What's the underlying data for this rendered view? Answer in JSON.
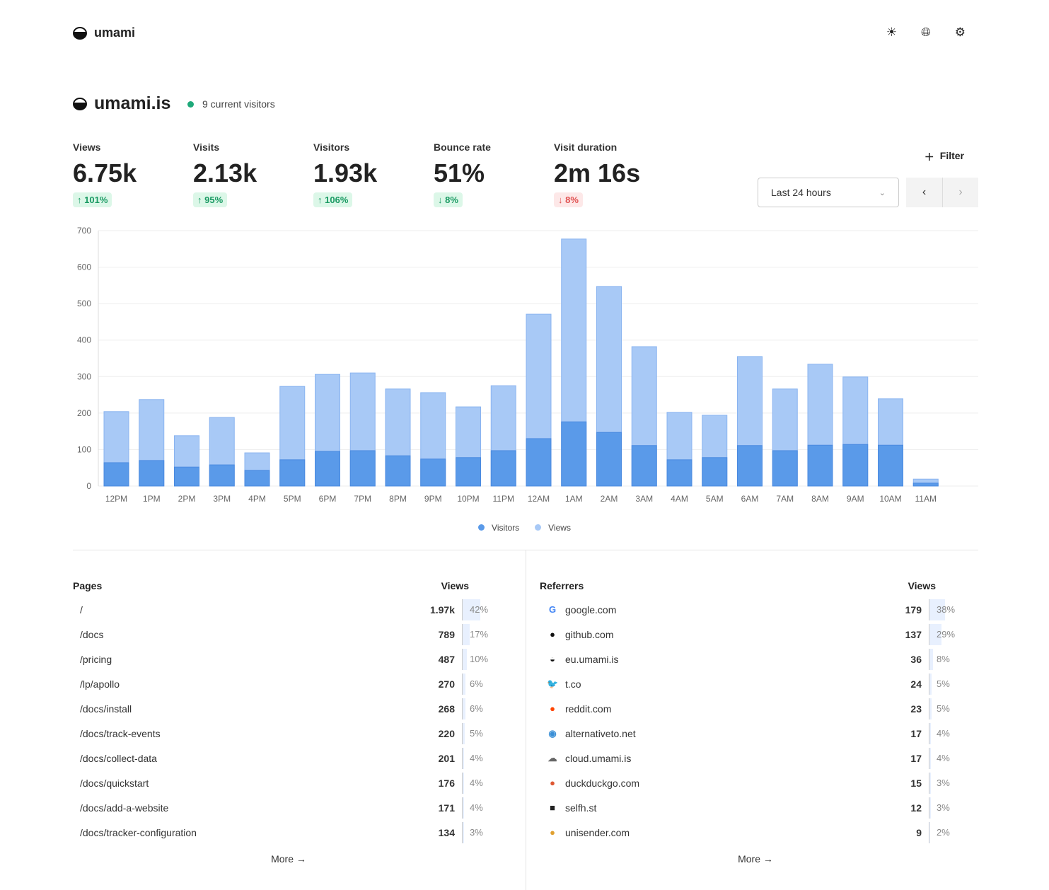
{
  "app": {
    "name": "umami"
  },
  "header_icons": [
    "sun-icon",
    "globe-icon",
    "gear-icon"
  ],
  "site": {
    "name": "umami.is",
    "live": "9 current visitors"
  },
  "metrics": [
    {
      "label": "Views",
      "value": "6.75k",
      "change": "101%",
      "dir": "up"
    },
    {
      "label": "Visits",
      "value": "2.13k",
      "change": "95%",
      "dir": "up"
    },
    {
      "label": "Visitors",
      "value": "1.93k",
      "change": "106%",
      "dir": "up"
    },
    {
      "label": "Bounce rate",
      "value": "51%",
      "change": "8%",
      "dir": "down-good"
    },
    {
      "label": "Visit duration",
      "value": "2m 16s",
      "change": "8%",
      "dir": "down-bad"
    }
  ],
  "controls": {
    "filter": "Filter",
    "range": "Last 24 hours"
  },
  "chart_data": {
    "type": "bar",
    "stacked": "overlay",
    "ylim": [
      0,
      700
    ],
    "yticks": [
      0,
      100,
      200,
      300,
      400,
      500,
      600,
      700
    ],
    "grid": true,
    "legend_position": "bottom",
    "categories": [
      "12PM",
      "1PM",
      "2PM",
      "3PM",
      "4PM",
      "5PM",
      "6PM",
      "7PM",
      "8PM",
      "9PM",
      "10PM",
      "11PM",
      "12AM",
      "1AM",
      "2AM",
      "3AM",
      "4AM",
      "5AM",
      "6AM",
      "7AM",
      "8AM",
      "9AM",
      "10AM",
      "11AM"
    ],
    "series": [
      {
        "name": "Visitors",
        "color": "#5a9ae9",
        "values": [
          64,
          70,
          52,
          58,
          43,
          72,
          95,
          97,
          83,
          74,
          78,
          97,
          130,
          176,
          147,
          111,
          72,
          78,
          111,
          97,
          112,
          114,
          112,
          8
        ]
      },
      {
        "name": "Views",
        "color": "#a8c9f6",
        "values": [
          204,
          237,
          138,
          188,
          91,
          273,
          306,
          310,
          266,
          256,
          217,
          275,
          471,
          677,
          547,
          382,
          202,
          194,
          355,
          266,
          334,
          299,
          239,
          19
        ]
      }
    ]
  },
  "pages": {
    "title": "Pages",
    "col": "Views",
    "more": "More",
    "rows": [
      {
        "label": "/",
        "value": "1.97k",
        "pct": "42%",
        "p": 42
      },
      {
        "label": "/docs",
        "value": "789",
        "pct": "17%",
        "p": 17
      },
      {
        "label": "/pricing",
        "value": "487",
        "pct": "10%",
        "p": 10
      },
      {
        "label": "/lp/apollo",
        "value": "270",
        "pct": "6%",
        "p": 6
      },
      {
        "label": "/docs/install",
        "value": "268",
        "pct": "6%",
        "p": 6
      },
      {
        "label": "/docs/track-events",
        "value": "220",
        "pct": "5%",
        "p": 5
      },
      {
        "label": "/docs/collect-data",
        "value": "201",
        "pct": "4%",
        "p": 4
      },
      {
        "label": "/docs/quickstart",
        "value": "176",
        "pct": "4%",
        "p": 4
      },
      {
        "label": "/docs/add-a-website",
        "value": "171",
        "pct": "4%",
        "p": 4
      },
      {
        "label": "/docs/tracker-configuration",
        "value": "134",
        "pct": "3%",
        "p": 3
      }
    ]
  },
  "referrers": {
    "title": "Referrers",
    "col": "Views",
    "more": "More",
    "rows": [
      {
        "label": "google.com",
        "value": "179",
        "pct": "38%",
        "p": 38,
        "icon": "google-icon",
        "glyph": "G",
        "color": "#4285f4"
      },
      {
        "label": "github.com",
        "value": "137",
        "pct": "29%",
        "p": 29,
        "icon": "github-icon",
        "glyph": "●",
        "color": "#111"
      },
      {
        "label": "eu.umami.is",
        "value": "36",
        "pct": "8%",
        "p": 8,
        "icon": "umami-icon",
        "glyph": "◒",
        "color": "#111"
      },
      {
        "label": "t.co",
        "value": "24",
        "pct": "5%",
        "p": 5,
        "icon": "twitter-icon",
        "glyph": "🐦",
        "color": "#1da1f2"
      },
      {
        "label": "reddit.com",
        "value": "23",
        "pct": "5%",
        "p": 5,
        "icon": "reddit-icon",
        "glyph": "●",
        "color": "#ff4500"
      },
      {
        "label": "alternativeto.net",
        "value": "17",
        "pct": "4%",
        "p": 4,
        "icon": "alternativeto-icon",
        "glyph": "◉",
        "color": "#3a8fd6"
      },
      {
        "label": "cloud.umami.is",
        "value": "17",
        "pct": "4%",
        "p": 4,
        "icon": "cloud-icon",
        "glyph": "☁",
        "color": "#666"
      },
      {
        "label": "duckduckgo.com",
        "value": "15",
        "pct": "3%",
        "p": 3,
        "icon": "duckduckgo-icon",
        "glyph": "●",
        "color": "#de5833"
      },
      {
        "label": "selfh.st",
        "value": "12",
        "pct": "3%",
        "p": 3,
        "icon": "selfhst-icon",
        "glyph": "■",
        "color": "#222"
      },
      {
        "label": "unisender.com",
        "value": "9",
        "pct": "2%",
        "p": 2,
        "icon": "unisender-icon",
        "glyph": "●",
        "color": "#e0a030"
      }
    ]
  }
}
